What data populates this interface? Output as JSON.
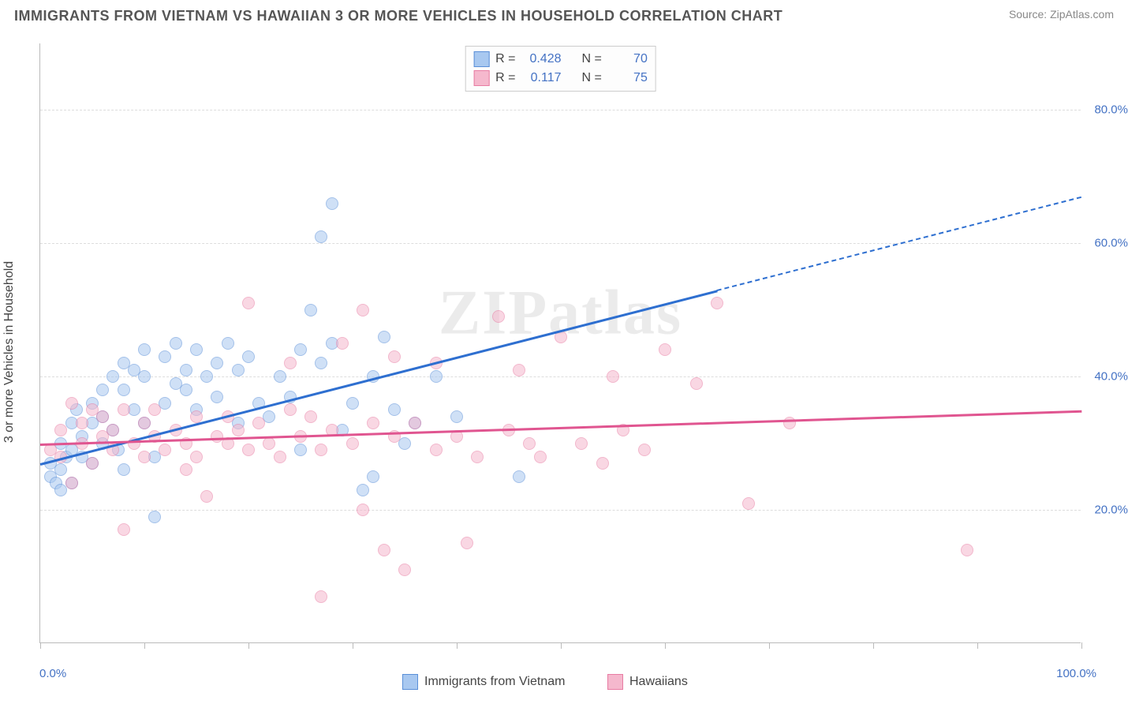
{
  "title": "IMMIGRANTS FROM VIETNAM VS HAWAIIAN 3 OR MORE VEHICLES IN HOUSEHOLD CORRELATION CHART",
  "source": "Source: ZipAtlas.com",
  "watermark": "ZIPatlas",
  "ylabel": "3 or more Vehicles in Household",
  "chart": {
    "type": "scatter",
    "background_color": "#ffffff",
    "grid_color": "#dddddd",
    "axis_color": "#bbbbbb",
    "xlim": [
      0,
      100
    ],
    "ylim": [
      0,
      90
    ],
    "yticks": [
      20,
      40,
      60,
      80
    ],
    "ytick_labels": [
      "20.0%",
      "40.0%",
      "60.0%",
      "80.0%"
    ],
    "xticks": [
      0,
      10,
      20,
      30,
      40,
      50,
      60,
      70,
      80,
      90,
      100
    ],
    "x_start_label": "0.0%",
    "x_end_label": "100.0%",
    "tick_label_color": "#4472c4",
    "tick_label_fontsize": 15,
    "marker_radius": 8,
    "marker_opacity": 0.55,
    "series": [
      {
        "name": "Immigrants from Vietnam",
        "color_fill": "#a8c8f0",
        "color_stroke": "#5a8fd8",
        "R": "0.428",
        "N": "70",
        "trend": {
          "x1": 0,
          "y1": 27,
          "x2": 100,
          "y2": 67,
          "solid_until_x": 65,
          "color": "#2e6fd0",
          "width": 2.5
        },
        "points": [
          [
            1,
            25
          ],
          [
            1,
            27
          ],
          [
            1.5,
            24
          ],
          [
            2,
            23
          ],
          [
            2,
            30
          ],
          [
            2.5,
            28
          ],
          [
            2,
            26
          ],
          [
            3,
            24
          ],
          [
            3,
            29
          ],
          [
            3,
            33
          ],
          [
            3.5,
            35
          ],
          [
            4,
            31
          ],
          [
            4,
            28
          ],
          [
            5,
            27
          ],
          [
            5,
            36
          ],
          [
            5,
            33
          ],
          [
            6,
            30
          ],
          [
            6,
            34
          ],
          [
            6,
            38
          ],
          [
            7,
            32
          ],
          [
            7,
            40
          ],
          [
            7.5,
            29
          ],
          [
            8,
            26
          ],
          [
            8,
            38
          ],
          [
            8,
            42
          ],
          [
            9,
            35
          ],
          [
            9,
            41
          ],
          [
            10,
            33
          ],
          [
            10,
            40
          ],
          [
            10,
            44
          ],
          [
            11,
            28
          ],
          [
            11,
            19
          ],
          [
            12,
            36
          ],
          [
            12,
            43
          ],
          [
            13,
            39
          ],
          [
            13,
            45
          ],
          [
            14,
            41
          ],
          [
            14,
            38
          ],
          [
            15,
            35
          ],
          [
            15,
            44
          ],
          [
            16,
            40
          ],
          [
            17,
            42
          ],
          [
            17,
            37
          ],
          [
            18,
            45
          ],
          [
            19,
            33
          ],
          [
            19,
            41
          ],
          [
            20,
            43
          ],
          [
            21,
            36
          ],
          [
            22,
            34
          ],
          [
            23,
            40
          ],
          [
            24,
            37
          ],
          [
            25,
            44
          ],
          [
            25,
            29
          ],
          [
            26,
            50
          ],
          [
            27,
            42
          ],
          [
            27,
            61
          ],
          [
            28,
            45
          ],
          [
            28,
            66
          ],
          [
            29,
            32
          ],
          [
            30,
            36
          ],
          [
            31,
            23
          ],
          [
            32,
            40
          ],
          [
            33,
            46
          ],
          [
            34,
            35
          ],
          [
            35,
            30
          ],
          [
            36,
            33
          ],
          [
            38,
            40
          ],
          [
            40,
            34
          ],
          [
            46,
            25
          ],
          [
            32,
            25
          ]
        ]
      },
      {
        "name": "Hawaiians",
        "color_fill": "#f5b8cd",
        "color_stroke": "#e87ca3",
        "R": "0.117",
        "N": "75",
        "trend": {
          "x1": 0,
          "y1": 30,
          "x2": 100,
          "y2": 35,
          "solid_until_x": 100,
          "color": "#e05590",
          "width": 2.5
        },
        "points": [
          [
            1,
            29
          ],
          [
            2,
            28
          ],
          [
            2,
            32
          ],
          [
            3,
            36
          ],
          [
            3,
            24
          ],
          [
            4,
            33
          ],
          [
            4,
            30
          ],
          [
            5,
            35
          ],
          [
            5,
            27
          ],
          [
            6,
            31
          ],
          [
            6,
            34
          ],
          [
            7,
            29
          ],
          [
            7,
            32
          ],
          [
            8,
            35
          ],
          [
            8,
            17
          ],
          [
            9,
            30
          ],
          [
            10,
            33
          ],
          [
            10,
            28
          ],
          [
            11,
            31
          ],
          [
            11,
            35
          ],
          [
            12,
            29
          ],
          [
            13,
            32
          ],
          [
            14,
            30
          ],
          [
            14,
            26
          ],
          [
            15,
            34
          ],
          [
            15,
            28
          ],
          [
            16,
            22
          ],
          [
            17,
            31
          ],
          [
            18,
            34
          ],
          [
            18,
            30
          ],
          [
            19,
            32
          ],
          [
            20,
            29
          ],
          [
            20,
            51
          ],
          [
            21,
            33
          ],
          [
            22,
            30
          ],
          [
            23,
            28
          ],
          [
            24,
            35
          ],
          [
            24,
            42
          ],
          [
            25,
            31
          ],
          [
            26,
            34
          ],
          [
            27,
            29
          ],
          [
            27,
            7
          ],
          [
            28,
            32
          ],
          [
            29,
            45
          ],
          [
            30,
            30
          ],
          [
            31,
            20
          ],
          [
            31,
            50
          ],
          [
            32,
            33
          ],
          [
            33,
            14
          ],
          [
            34,
            31
          ],
          [
            34,
            43
          ],
          [
            35,
            11
          ],
          [
            36,
            33
          ],
          [
            38,
            29
          ],
          [
            40,
            31
          ],
          [
            41,
            15
          ],
          [
            42,
            28
          ],
          [
            44,
            49
          ],
          [
            45,
            32
          ],
          [
            47,
            30
          ],
          [
            48,
            28
          ],
          [
            50,
            46
          ],
          [
            52,
            30
          ],
          [
            54,
            27
          ],
          [
            55,
            40
          ],
          [
            56,
            32
          ],
          [
            58,
            29
          ],
          [
            60,
            44
          ],
          [
            63,
            39
          ],
          [
            65,
            51
          ],
          [
            68,
            21
          ],
          [
            72,
            33
          ],
          [
            89,
            14
          ],
          [
            38,
            42
          ],
          [
            46,
            41
          ]
        ]
      }
    ]
  },
  "legend": {
    "R_label": "R =",
    "N_label": "N =",
    "series1_label": "Immigrants from Vietnam",
    "series2_label": "Hawaiians"
  }
}
